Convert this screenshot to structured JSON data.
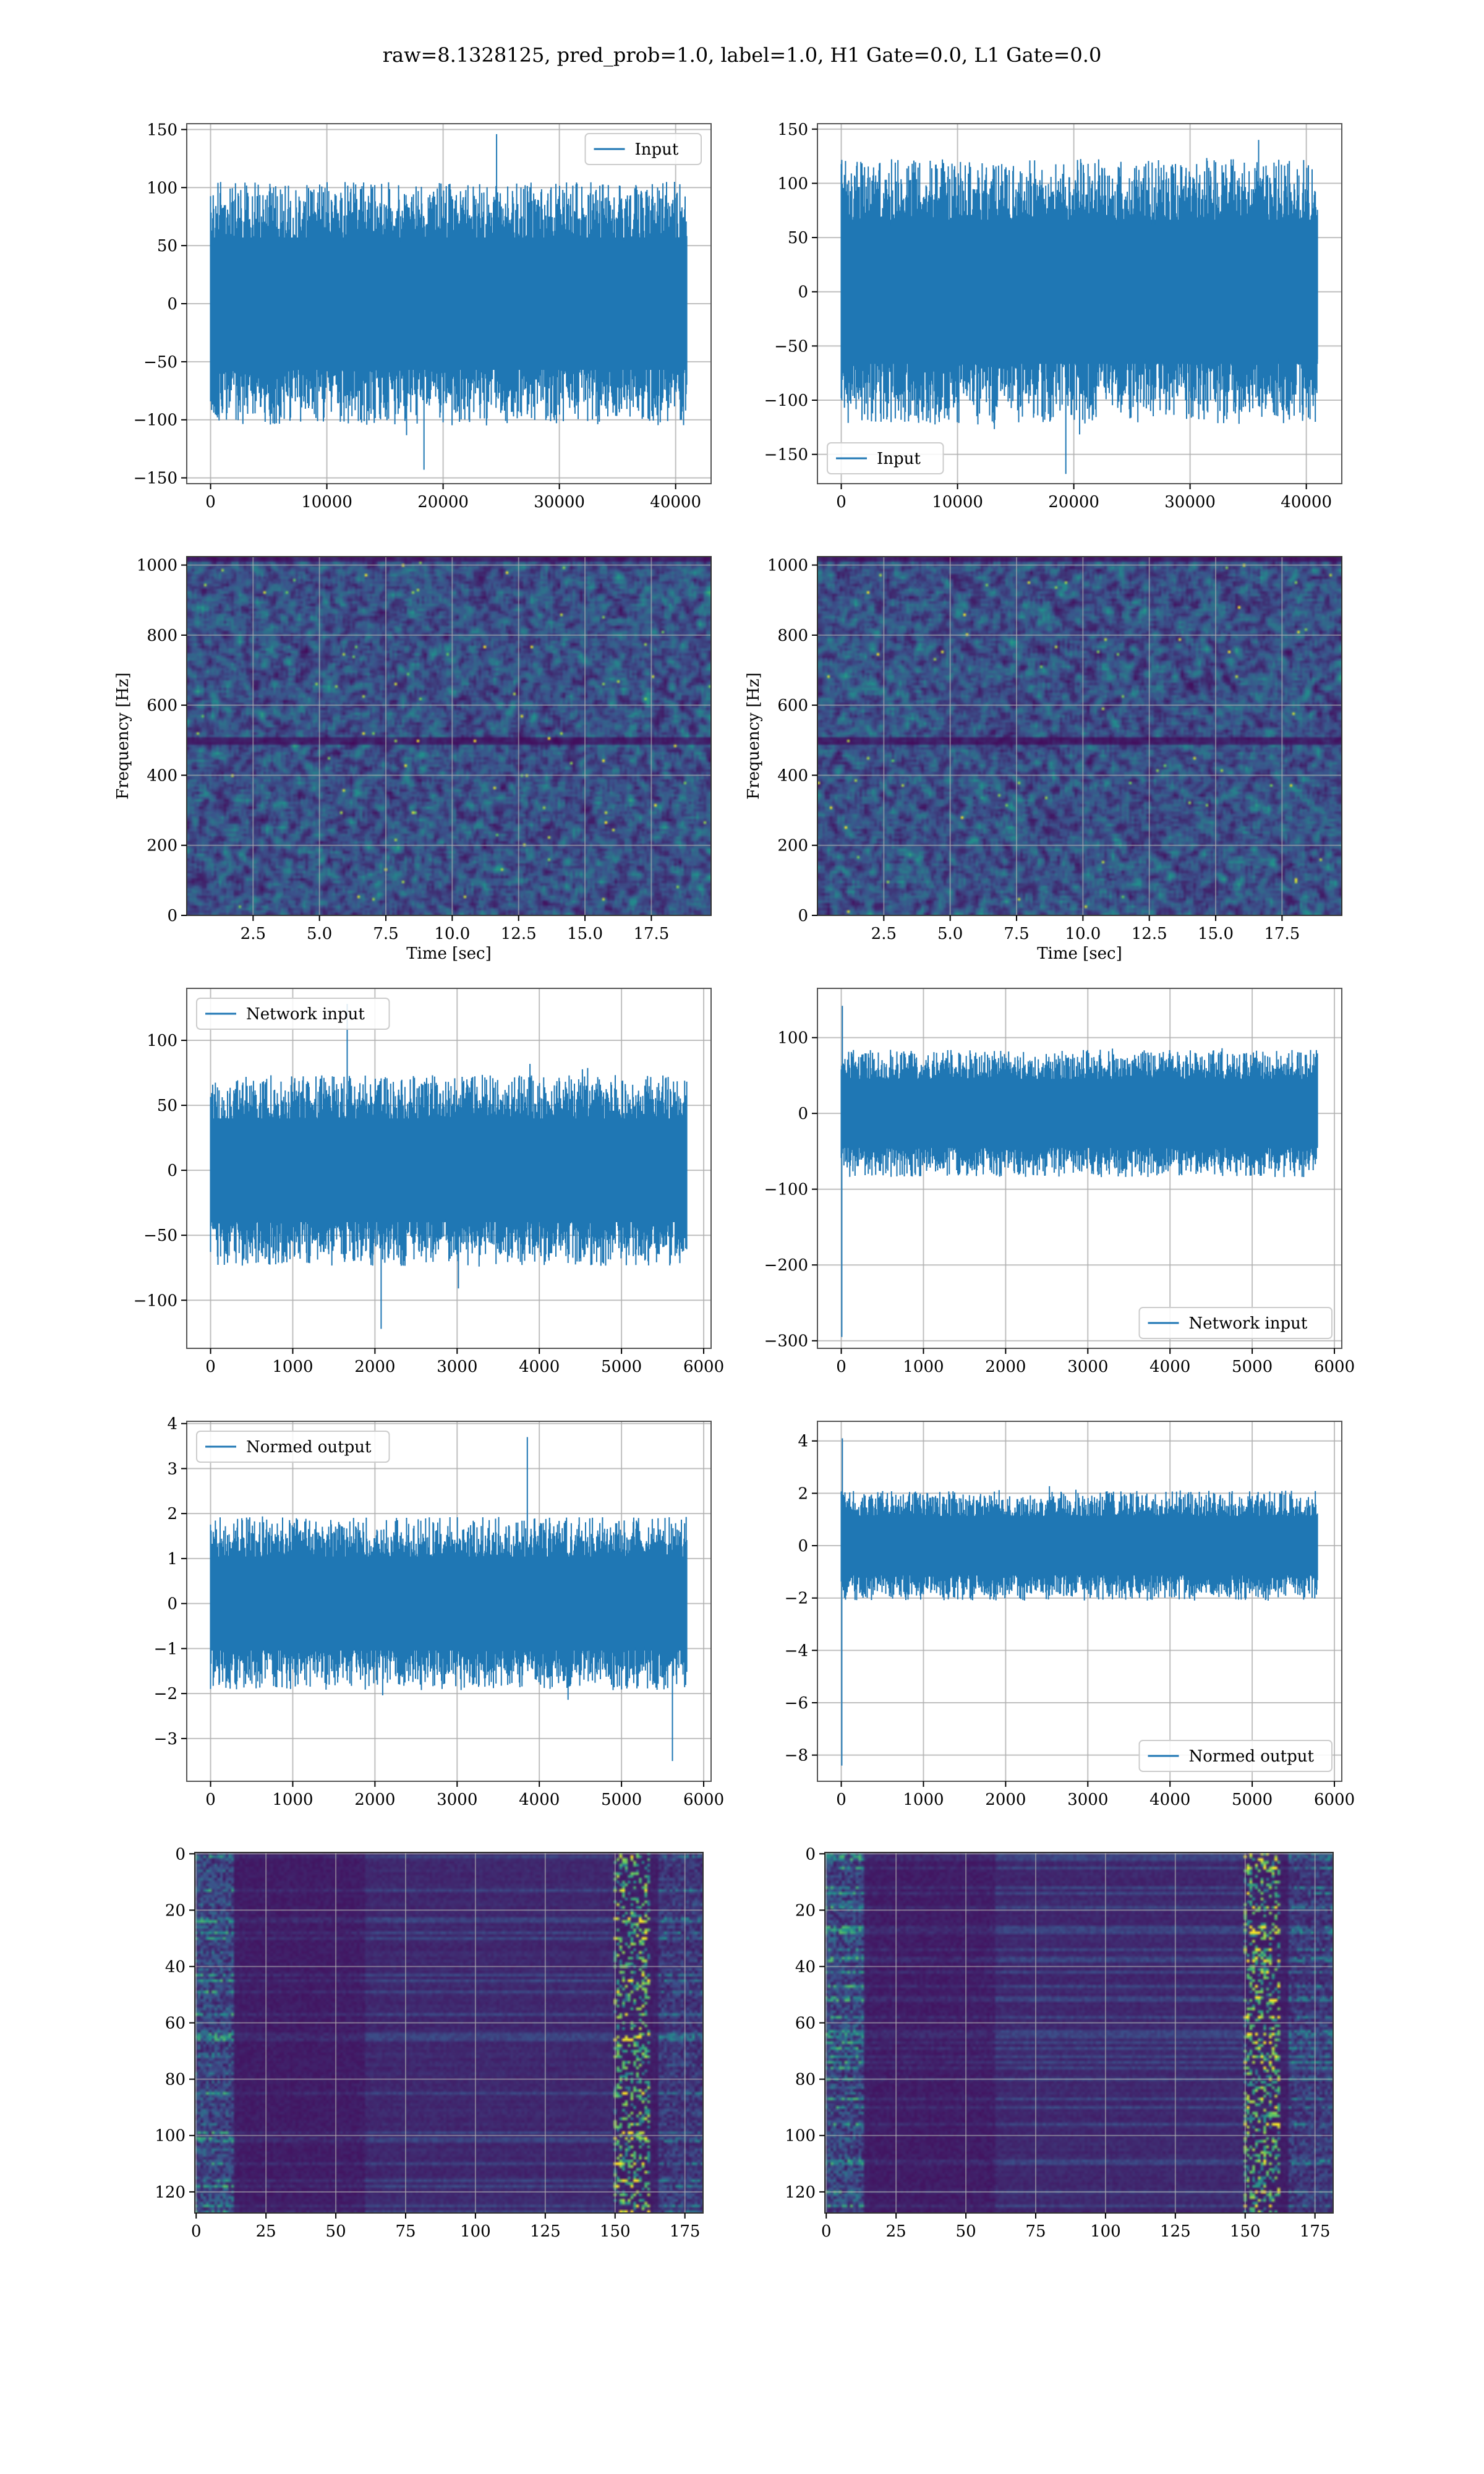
{
  "title": "raw=8.1328125, pred_prob=1.0, label=1.0, H1 Gate=0.0, L1 Gate=0.0",
  "colors": {
    "line": "#1f77b4",
    "grid": "#b0b0b0",
    "frame": "#000000"
  },
  "chart_data": [
    {
      "id": "input-h1",
      "type": "line",
      "series": [
        {
          "name": "Input"
        }
      ],
      "legend_loc": "upper right",
      "xlim": [
        -2050,
        43050
      ],
      "ylim": [
        -155,
        155
      ],
      "xticks": [
        0,
        10000,
        20000,
        30000,
        40000
      ],
      "yticks": [
        -150,
        -100,
        -50,
        0,
        50,
        100,
        150
      ],
      "xlabel": "",
      "ylabel": "",
      "grid": true,
      "signal": {
        "n": 41000,
        "x_start": 0,
        "x_end": 41000,
        "amp_typical": 60,
        "amp_peak": 146,
        "amp_min": -143
      }
    },
    {
      "id": "input-l1",
      "type": "line",
      "series": [
        {
          "name": "Input"
        }
      ],
      "legend_loc": "lower left",
      "xlim": [
        -2050,
        43050
      ],
      "ylim": [
        -177,
        155
      ],
      "xticks": [
        0,
        10000,
        20000,
        30000,
        40000
      ],
      "yticks": [
        -150,
        -100,
        -50,
        0,
        50,
        100,
        150
      ],
      "xlabel": "",
      "ylabel": "",
      "grid": true,
      "signal": {
        "n": 41000,
        "x_start": 0,
        "x_end": 41000,
        "amp_typical": 70,
        "amp_peak": 140,
        "amp_min": -168
      }
    },
    {
      "id": "spectrogram-h1",
      "type": "heatmap",
      "colormap": "viridis",
      "xlim": [
        0,
        19.75
      ],
      "ylim": [
        0,
        1024
      ],
      "xticks": [
        2.5,
        5.0,
        7.5,
        10.0,
        12.5,
        15.0,
        17.5
      ],
      "yticks": [
        0,
        200,
        400,
        600,
        800,
        1000
      ],
      "xlabel": "Time [sec]",
      "ylabel": "Frequency [Hz]",
      "grid": true
    },
    {
      "id": "spectrogram-l1",
      "type": "heatmap",
      "colormap": "viridis",
      "xlim": [
        0,
        19.75
      ],
      "ylim": [
        0,
        1024
      ],
      "xticks": [
        2.5,
        5.0,
        7.5,
        10.0,
        12.5,
        15.0,
        17.5
      ],
      "yticks": [
        0,
        200,
        400,
        600,
        800,
        1000
      ],
      "xlabel": "Time [sec]",
      "ylabel": "Frequency [Hz]",
      "grid": true
    },
    {
      "id": "network-input-h1",
      "type": "line",
      "series": [
        {
          "name": "Network input"
        }
      ],
      "legend_loc": "upper left",
      "xlim": [
        -290,
        6090
      ],
      "ylim": [
        -137,
        140
      ],
      "xticks": [
        0,
        1000,
        2000,
        3000,
        4000,
        5000,
        6000
      ],
      "yticks": [
        -100,
        -50,
        0,
        50,
        100
      ],
      "xlabel": "",
      "ylabel": "",
      "grid": true,
      "signal": {
        "n": 5800,
        "x_start": 0,
        "x_end": 5800,
        "amp_typical": 42,
        "amp_peak": 128,
        "amp_min": -122
      }
    },
    {
      "id": "network-input-l1",
      "type": "line",
      "series": [
        {
          "name": "Network input"
        }
      ],
      "legend_loc": "lower right",
      "xlim": [
        -290,
        6090
      ],
      "ylim": [
        -310,
        165
      ],
      "xticks": [
        0,
        1000,
        2000,
        3000,
        4000,
        5000,
        6000
      ],
      "yticks": [
        -300,
        -200,
        -100,
        0,
        100
      ],
      "xlabel": "",
      "ylabel": "",
      "grid": true,
      "signal": {
        "n": 5800,
        "x_start": 0,
        "x_end": 5800,
        "amp_typical": 48,
        "amp_peak": 142,
        "amp_min": -295
      }
    },
    {
      "id": "normed-output-h1",
      "type": "line",
      "series": [
        {
          "name": "Normed output"
        }
      ],
      "legend_loc": "upper left",
      "xlim": [
        -290,
        6090
      ],
      "ylim": [
        -3.95,
        4.05
      ],
      "xticks": [
        0,
        1000,
        2000,
        3000,
        4000,
        5000,
        6000
      ],
      "yticks": [
        -3,
        -2,
        -1,
        0,
        1,
        2,
        3,
        4
      ],
      "xlabel": "",
      "ylabel": "",
      "grid": true,
      "signal": {
        "n": 5800,
        "x_start": 0,
        "x_end": 5800,
        "amp_typical": 1.1,
        "amp_peak": 3.7,
        "amp_min": -3.5
      }
    },
    {
      "id": "normed-output-l1",
      "type": "line",
      "series": [
        {
          "name": "Normed output"
        }
      ],
      "legend_loc": "lower right",
      "xlim": [
        -290,
        6090
      ],
      "ylim": [
        -9.0,
        4.75
      ],
      "xticks": [
        0,
        1000,
        2000,
        3000,
        4000,
        5000,
        6000
      ],
      "yticks": [
        -8,
        -6,
        -4,
        -2,
        0,
        2,
        4
      ],
      "xlabel": "",
      "ylabel": "",
      "grid": true,
      "signal": {
        "n": 5800,
        "x_start": 0,
        "x_end": 5800,
        "amp_typical": 1.2,
        "amp_peak": 4.1,
        "amp_min": -8.4
      }
    },
    {
      "id": "activation-map-h1",
      "type": "heatmap",
      "colormap": "viridis",
      "rows": 128,
      "cols": 182,
      "xlim": [
        -0.5,
        181.5
      ],
      "ylim": [
        127.5,
        -0.5
      ],
      "xticks": [
        0,
        25,
        50,
        75,
        100,
        125,
        150,
        175
      ],
      "yticks": [
        0,
        20,
        40,
        60,
        80,
        100,
        120
      ],
      "xlabel": "",
      "ylabel": "",
      "grid": true
    },
    {
      "id": "activation-map-l1",
      "type": "heatmap",
      "colormap": "viridis",
      "rows": 128,
      "cols": 182,
      "xlim": [
        -0.5,
        181.5
      ],
      "ylim": [
        127.5,
        -0.5
      ],
      "xticks": [
        0,
        25,
        50,
        75,
        100,
        125,
        150,
        175
      ],
      "yticks": [
        0,
        20,
        40,
        60,
        80,
        100,
        120
      ],
      "xlabel": "",
      "ylabel": "",
      "grid": true
    }
  ]
}
